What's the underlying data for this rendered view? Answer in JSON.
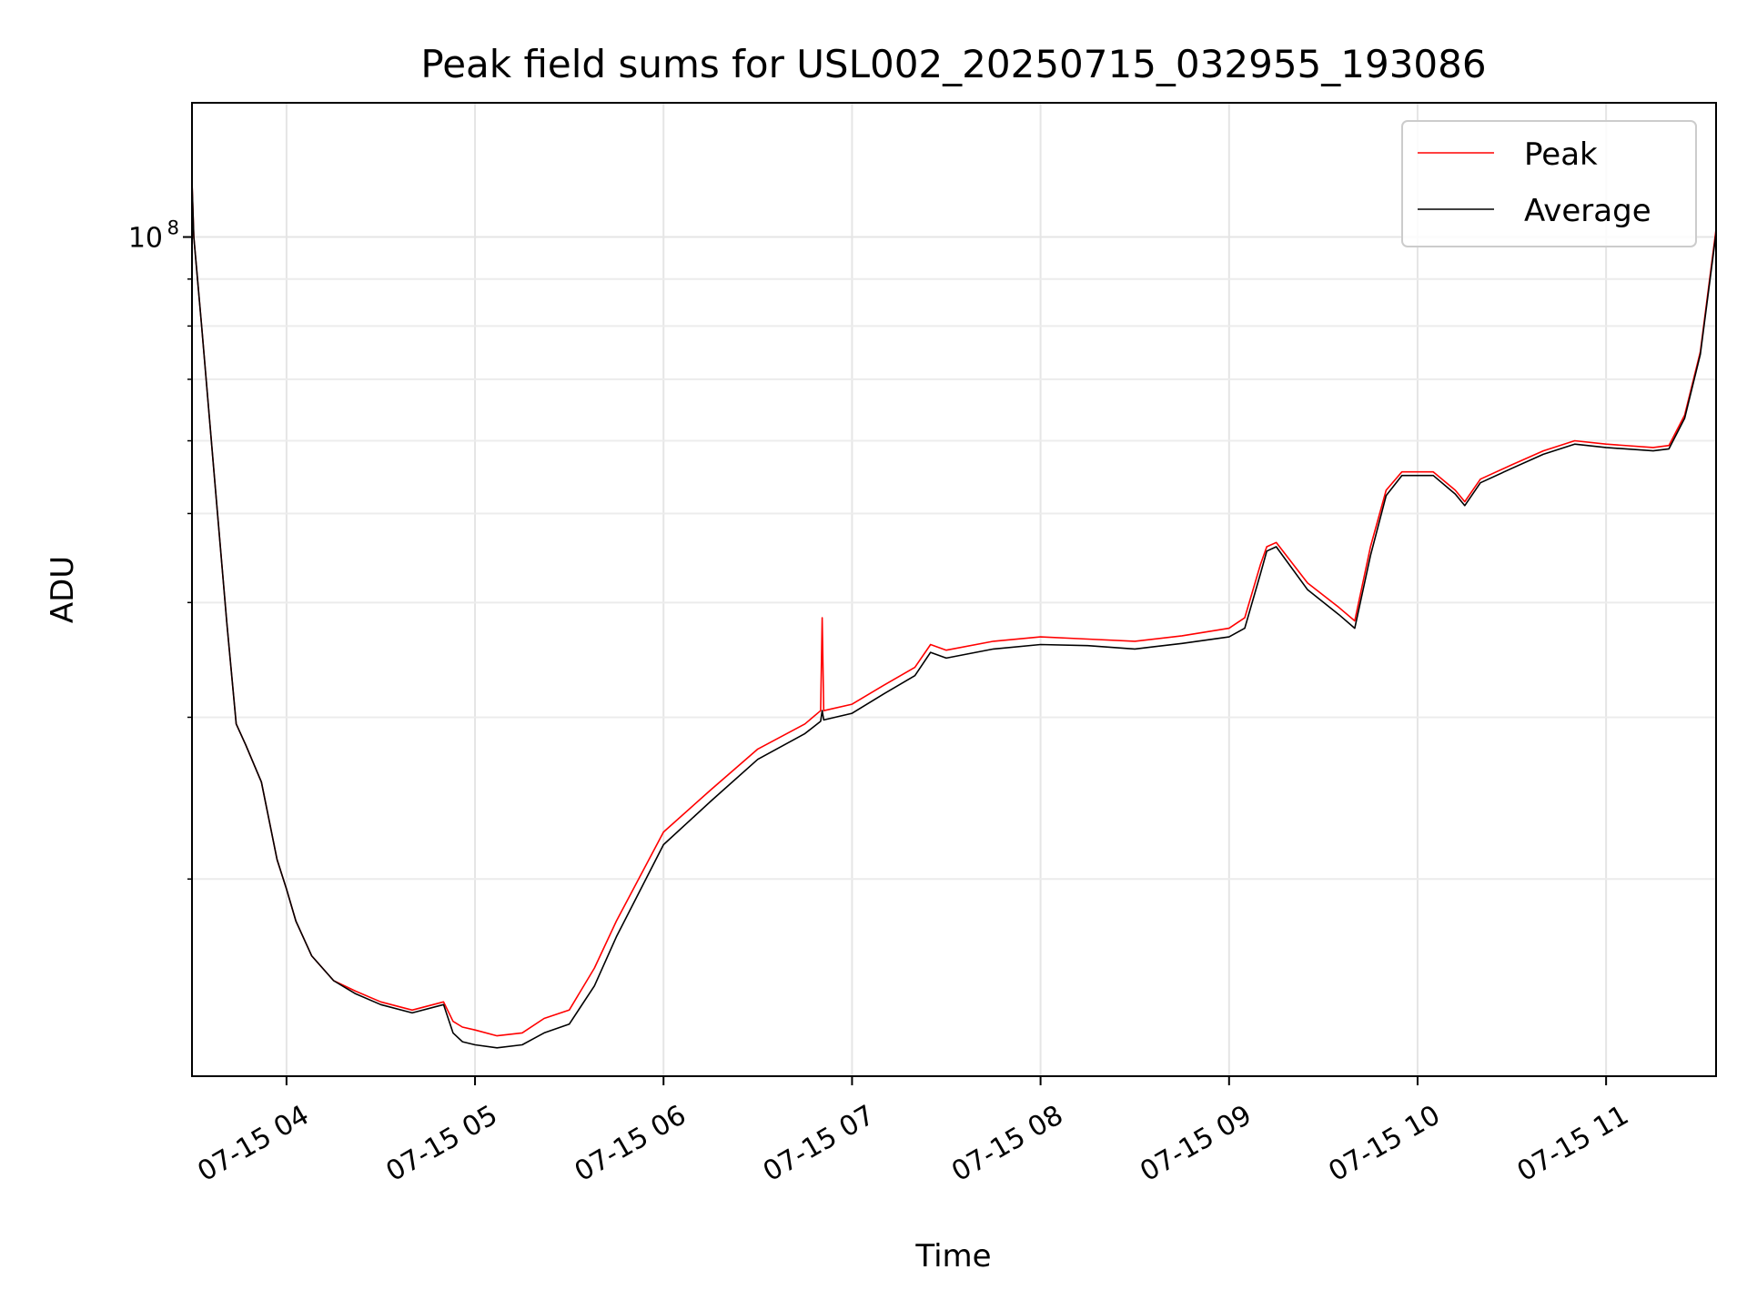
{
  "chart_data": {
    "type": "line",
    "title": "Peak field sums for USL002_20250715_032955_193086",
    "xlabel": "Time",
    "ylabel": "ADU",
    "y_scale": "log",
    "grid": true,
    "legend_position": "top-right",
    "x_range": [
      "2025-07-15 03:29:55",
      "2025-07-15 11:35:00"
    ],
    "ylim": [
      12200000,
      140000000
    ],
    "x_ticks": [
      {
        "value": "2025-07-15 04:00",
        "label": "07-15 04"
      },
      {
        "value": "2025-07-15 05:00",
        "label": "07-15 05"
      },
      {
        "value": "2025-07-15 06:00",
        "label": "07-15 06"
      },
      {
        "value": "2025-07-15 07:00",
        "label": "07-15 07"
      },
      {
        "value": "2025-07-15 08:00",
        "label": "07-15 08"
      },
      {
        "value": "2025-07-15 09:00",
        "label": "07-15 09"
      },
      {
        "value": "2025-07-15 10:00",
        "label": "07-15 10"
      },
      {
        "value": "2025-07-15 11:00",
        "label": "07-15 11"
      }
    ],
    "y_ticks": [
      {
        "value": 100000000,
        "base": "10",
        "exponent": "8"
      }
    ],
    "y_minor_ticks": [
      20000000,
      30000000,
      40000000,
      50000000,
      60000000,
      70000000,
      80000000,
      90000000
    ],
    "series": [
      {
        "name": "Peak",
        "color": "#ff0000",
        "x": [
          "2025-07-15 03:29:55",
          "2025-07-15 03:30:30",
          "2025-07-15 03:33",
          "2025-07-15 03:37",
          "2025-07-15 03:41",
          "2025-07-15 03:44",
          "2025-07-15 03:47",
          "2025-07-15 03:52",
          "2025-07-15 03:57",
          "2025-07-15 04:00",
          "2025-07-15 04:03",
          "2025-07-15 04:08",
          "2025-07-15 04:15",
          "2025-07-15 04:22",
          "2025-07-15 04:30",
          "2025-07-15 04:40",
          "2025-07-15 04:50",
          "2025-07-15 04:53",
          "2025-07-15 04:56",
          "2025-07-15 05:00",
          "2025-07-15 05:07",
          "2025-07-15 05:15",
          "2025-07-15 05:22",
          "2025-07-15 05:30",
          "2025-07-15 05:38",
          "2025-07-15 05:45",
          "2025-07-15 06:00",
          "2025-07-15 06:15",
          "2025-07-15 06:30",
          "2025-07-15 06:45",
          "2025-07-15 06:50",
          "2025-07-15 06:50:30",
          "2025-07-15 06:51",
          "2025-07-15 07:00",
          "2025-07-15 07:10",
          "2025-07-15 07:20",
          "2025-07-15 07:25",
          "2025-07-15 07:30",
          "2025-07-15 07:45",
          "2025-07-15 08:00",
          "2025-07-15 08:15",
          "2025-07-15 08:30",
          "2025-07-15 08:45",
          "2025-07-15 09:00",
          "2025-07-15 09:05",
          "2025-07-15 09:10",
          "2025-07-15 09:12",
          "2025-07-15 09:15",
          "2025-07-15 09:25",
          "2025-07-15 09:35",
          "2025-07-15 09:40",
          "2025-07-15 09:45",
          "2025-07-15 09:50",
          "2025-07-15 09:55",
          "2025-07-15 10:05",
          "2025-07-15 10:12",
          "2025-07-15 10:15",
          "2025-07-15 10:20",
          "2025-07-15 10:30",
          "2025-07-15 10:40",
          "2025-07-15 10:50",
          "2025-07-15 11:00",
          "2025-07-15 11:15",
          "2025-07-15 11:20",
          "2025-07-15 11:25",
          "2025-07-15 11:30",
          "2025-07-15 11:35"
        ],
        "y": [
          115000000,
          100000000,
          80000000,
          55000000,
          38000000,
          29500000,
          28000000,
          25500000,
          21000000,
          19500000,
          18000000,
          16500000,
          15500000,
          15100000,
          14700000,
          14400000,
          14700000,
          14000000,
          13800000,
          13700000,
          13500000,
          13600000,
          14100000,
          14400000,
          16000000,
          18000000,
          22500000,
          25000000,
          27700000,
          29500000,
          30500000,
          38500000,
          30500000,
          31000000,
          32500000,
          34000000,
          36000000,
          35500000,
          36300000,
          36700000,
          36500000,
          36300000,
          36800000,
          37500000,
          38500000,
          44000000,
          46000000,
          46500000,
          42000000,
          39500000,
          38200000,
          46000000,
          53000000,
          55500000,
          55500000,
          53000000,
          51500000,
          54500000,
          56500000,
          58500000,
          60000000,
          59500000,
          59000000,
          59300000,
          64000000,
          75000000,
          102000000
        ]
      },
      {
        "name": "Average",
        "color": "#000000",
        "x": [
          "2025-07-15 03:29:55",
          "2025-07-15 03:30:30",
          "2025-07-15 03:33",
          "2025-07-15 03:37",
          "2025-07-15 03:41",
          "2025-07-15 03:44",
          "2025-07-15 03:47",
          "2025-07-15 03:52",
          "2025-07-15 03:57",
          "2025-07-15 04:00",
          "2025-07-15 04:03",
          "2025-07-15 04:08",
          "2025-07-15 04:15",
          "2025-07-15 04:22",
          "2025-07-15 04:30",
          "2025-07-15 04:40",
          "2025-07-15 04:50",
          "2025-07-15 04:53",
          "2025-07-15 04:56",
          "2025-07-15 05:00",
          "2025-07-15 05:07",
          "2025-07-15 05:15",
          "2025-07-15 05:22",
          "2025-07-15 05:30",
          "2025-07-15 05:38",
          "2025-07-15 05:45",
          "2025-07-15 06:00",
          "2025-07-15 06:15",
          "2025-07-15 06:30",
          "2025-07-15 06:45",
          "2025-07-15 06:50",
          "2025-07-15 06:50:30",
          "2025-07-15 06:51",
          "2025-07-15 07:00",
          "2025-07-15 07:10",
          "2025-07-15 07:20",
          "2025-07-15 07:25",
          "2025-07-15 07:30",
          "2025-07-15 07:45",
          "2025-07-15 08:00",
          "2025-07-15 08:15",
          "2025-07-15 08:30",
          "2025-07-15 08:45",
          "2025-07-15 09:00",
          "2025-07-15 09:05",
          "2025-07-15 09:10",
          "2025-07-15 09:12",
          "2025-07-15 09:15",
          "2025-07-15 09:25",
          "2025-07-15 09:35",
          "2025-07-15 09:40",
          "2025-07-15 09:45",
          "2025-07-15 09:50",
          "2025-07-15 09:55",
          "2025-07-15 10:05",
          "2025-07-15 10:12",
          "2025-07-15 10:15",
          "2025-07-15 10:20",
          "2025-07-15 10:30",
          "2025-07-15 10:40",
          "2025-07-15 10:50",
          "2025-07-15 11:00",
          "2025-07-15 11:15",
          "2025-07-15 11:20",
          "2025-07-15 11:25",
          "2025-07-15 11:30",
          "2025-07-15 11:35"
        ],
        "y": [
          115000000,
          100000000,
          80000000,
          55000000,
          38000000,
          29500000,
          28000000,
          25500000,
          21000000,
          19500000,
          18000000,
          16500000,
          15500000,
          15000000,
          14600000,
          14300000,
          14600000,
          13600000,
          13300000,
          13200000,
          13100000,
          13200000,
          13600000,
          13900000,
          15300000,
          17300000,
          21800000,
          24300000,
          27000000,
          28800000,
          29700000,
          30500000,
          29800000,
          30300000,
          31800000,
          33300000,
          35300000,
          34800000,
          35600000,
          36000000,
          35900000,
          35600000,
          36100000,
          36700000,
          37500000,
          43000000,
          45500000,
          46000000,
          41300000,
          38800000,
          37500000,
          45000000,
          52300000,
          55000000,
          55000000,
          52500000,
          51000000,
          54000000,
          56000000,
          58000000,
          59500000,
          59000000,
          58500000,
          58800000,
          63500000,
          74500000,
          101000000
        ]
      }
    ]
  }
}
